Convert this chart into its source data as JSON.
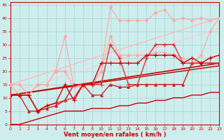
{
  "xlabel": "Vent moyen/en rafales ( km/h )",
  "xlim": [
    0,
    23
  ],
  "ylim": [
    0,
    46
  ],
  "yticks": [
    0,
    5,
    10,
    15,
    20,
    25,
    30,
    35,
    40,
    45
  ],
  "xticks": [
    0,
    1,
    2,
    3,
    4,
    5,
    6,
    7,
    8,
    9,
    10,
    11,
    12,
    13,
    14,
    15,
    16,
    17,
    18,
    19,
    20,
    21,
    22,
    23
  ],
  "bg_color": "#ceeeed",
  "grid_color": "#a8d8d8",
  "series": [
    {
      "x": [
        0,
        1,
        2,
        3,
        4,
        5,
        6,
        7,
        8,
        9,
        10,
        11,
        12,
        13,
        14,
        15,
        16,
        17,
        18,
        19,
        20,
        21,
        22,
        23
      ],
      "y": [
        15,
        15,
        11,
        15,
        15,
        20,
        20,
        14,
        14,
        15,
        20,
        44,
        39,
        39,
        39,
        39,
        42,
        43,
        39,
        40,
        39,
        40,
        39,
        40
      ],
      "color": "#ffaaaa",
      "lw": 0.9,
      "marker": "o",
      "ms": 2.5,
      "zorder": 3
    },
    {
      "x": [
        0,
        1,
        2,
        3,
        4,
        5,
        6,
        7,
        8,
        9,
        10,
        11,
        12,
        13,
        14,
        15,
        16,
        17,
        18,
        19,
        20,
        21,
        22,
        23
      ],
      "y": [
        15,
        11,
        11,
        15,
        15,
        20,
        33,
        14,
        15,
        15,
        20,
        33,
        26,
        26,
        26,
        26,
        27,
        27,
        26,
        25,
        23,
        26,
        35,
        40
      ],
      "color": "#ffaaaa",
      "lw": 0.9,
      "marker": "o",
      "ms": 2.5,
      "zorder": 3
    },
    {
      "x": [
        0,
        23
      ],
      "y": [
        15,
        40
      ],
      "color": "#ffbbbb",
      "lw": 1.0,
      "marker": null,
      "zorder": 2
    },
    {
      "x": [
        0,
        23
      ],
      "y": [
        12,
        36
      ],
      "color": "#ffcccc",
      "lw": 0.9,
      "marker": null,
      "zorder": 2
    },
    {
      "x": [
        0,
        1,
        2,
        3,
        4,
        5,
        6,
        7,
        8,
        9,
        10,
        11,
        12,
        13,
        14,
        15,
        16,
        17,
        18,
        19,
        20,
        21,
        22,
        23
      ],
      "y": [
        11,
        11,
        11,
        5,
        7,
        8,
        9,
        10,
        15,
        15,
        15,
        30,
        25,
        15,
        15,
        25,
        30,
        30,
        30,
        23,
        23,
        23,
        23,
        23
      ],
      "color": "#dd3333",
      "lw": 1.0,
      "marker": "+",
      "ms": 4,
      "zorder": 5
    },
    {
      "x": [
        0,
        1,
        2,
        3,
        4,
        5,
        6,
        7,
        8,
        9,
        10,
        11,
        12,
        13,
        14,
        15,
        16,
        17,
        18,
        19,
        20,
        21,
        22,
        23
      ],
      "y": [
        11,
        11,
        11,
        5,
        7,
        8,
        15,
        9,
        15,
        15,
        23,
        23,
        23,
        23,
        23,
        26,
        26,
        26,
        26,
        23,
        25,
        23,
        25,
        26
      ],
      "color": "#cc0000",
      "lw": 1.0,
      "marker": "+",
      "ms": 4,
      "zorder": 5
    },
    {
      "x": [
        0,
        23
      ],
      "y": [
        11,
        23
      ],
      "color": "#cc0000",
      "lw": 1.2,
      "marker": null,
      "zorder": 2
    },
    {
      "x": [
        0,
        23
      ],
      "y": [
        11,
        22
      ],
      "color": "#bb0000",
      "lw": 1.0,
      "marker": null,
      "zorder": 2
    },
    {
      "x": [
        0,
        1,
        2,
        3,
        4,
        5,
        6,
        7,
        8,
        9,
        10,
        11,
        12,
        13,
        14,
        15,
        16,
        17,
        18,
        19,
        20,
        21,
        22,
        23
      ],
      "y": [
        11,
        11,
        5,
        5,
        6,
        7,
        9,
        15,
        15,
        11,
        11,
        15,
        14,
        14,
        15,
        15,
        15,
        15,
        15,
        15,
        23,
        23,
        23,
        23
      ],
      "color": "#cc2222",
      "lw": 1.0,
      "marker": "^",
      "ms": 2.5,
      "zorder": 4
    },
    {
      "x": [
        0,
        1,
        2,
        3,
        4,
        5,
        6,
        7,
        8,
        9,
        10,
        11,
        12,
        13,
        14,
        15,
        16,
        17,
        18,
        19,
        20,
        21,
        22,
        23
      ],
      "y": [
        0,
        0,
        1,
        2,
        3,
        4,
        5,
        5,
        5,
        6,
        6,
        6,
        7,
        7,
        8,
        8,
        9,
        9,
        10,
        10,
        11,
        11,
        12,
        12
      ],
      "color": "#cc0000",
      "lw": 1.0,
      "marker": null,
      "zorder": 2
    }
  ]
}
